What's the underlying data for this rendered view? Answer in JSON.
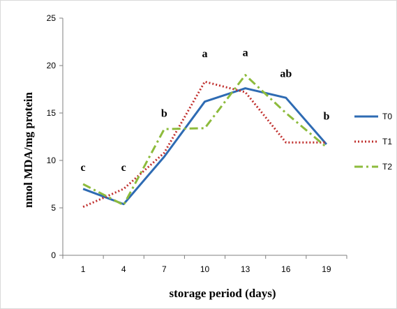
{
  "chart_data": {
    "type": "line",
    "title": "",
    "xlabel": "storage period (days)",
    "ylabel": "nmol MDA/mg protein",
    "categories": [
      "1",
      "4",
      "7",
      "10",
      "13",
      "16",
      "19"
    ],
    "ylim": [
      0,
      25
    ],
    "yticks": [
      0,
      5,
      10,
      15,
      20,
      25
    ],
    "grid": false,
    "legend_position": "right",
    "series": [
      {
        "name": "T0",
        "values": [
          7.0,
          5.4,
          10.4,
          16.2,
          17.6,
          16.6,
          11.7
        ],
        "color": "#2e6bb3",
        "style": "solid"
      },
      {
        "name": "T1",
        "values": [
          5.1,
          7.0,
          10.8,
          18.3,
          17.2,
          11.9,
          11.9
        ],
        "color": "#c0302e",
        "style": "dotted"
      },
      {
        "name": "T2",
        "values": [
          7.5,
          5.3,
          13.3,
          13.4,
          19.0,
          15.0,
          11.4
        ],
        "color": "#8dbb3c",
        "style": "dashdot"
      }
    ],
    "annotations": [
      {
        "category": "1",
        "y": 8.9,
        "text": "c"
      },
      {
        "category": "4",
        "y": 8.9,
        "text": "c"
      },
      {
        "category": "7",
        "y": 14.6,
        "text": "b"
      },
      {
        "category": "10",
        "y": 20.9,
        "text": "a"
      },
      {
        "category": "13",
        "y": 21.0,
        "text": "a"
      },
      {
        "category": "16",
        "y": 18.8,
        "text": "ab"
      },
      {
        "category": "19",
        "y": 14.3,
        "text": "b"
      }
    ]
  }
}
